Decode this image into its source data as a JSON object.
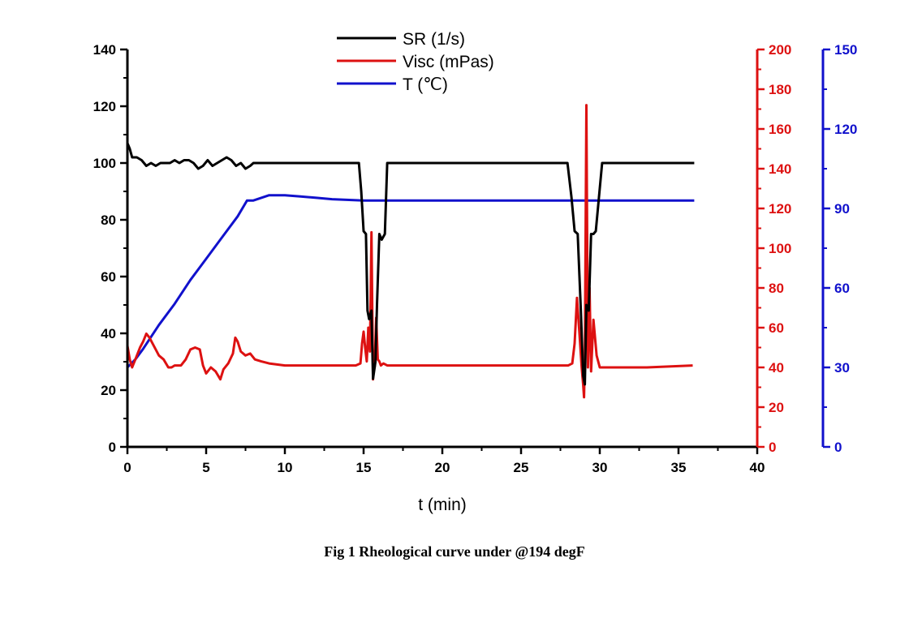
{
  "caption": "Fig 1 Rheological curve under @194 degF",
  "chart_data": {
    "type": "line",
    "xlabel": "t (min)",
    "xlim": [
      0,
      40
    ],
    "x_ticks": [
      0,
      5,
      10,
      15,
      20,
      25,
      30,
      35,
      40
    ],
    "grid": false,
    "legend_position": "top-center",
    "axes": [
      {
        "id": "left",
        "ylim": [
          0,
          140
        ],
        "ticks": [
          0,
          20,
          40,
          60,
          80,
          100,
          120,
          140
        ],
        "color": "#000000"
      },
      {
        "id": "right1",
        "ylim": [
          0,
          200
        ],
        "ticks": [
          0,
          20,
          40,
          60,
          80,
          100,
          120,
          140,
          160,
          180,
          200
        ],
        "color": "#dd1111"
      },
      {
        "id": "right2",
        "ylim": [
          0,
          150
        ],
        "ticks": [
          0,
          30,
          60,
          90,
          120,
          150
        ],
        "color": "#1111cc"
      }
    ],
    "series": [
      {
        "name": "SR (1/s)",
        "axis": "left",
        "color": "#000000",
        "x": [
          0,
          0.15,
          0.3,
          0.6,
          0.9,
          1.2,
          1.5,
          1.8,
          2.1,
          2.4,
          2.7,
          3.0,
          3.3,
          3.6,
          3.9,
          4.2,
          4.5,
          4.8,
          5.1,
          5.4,
          5.7,
          6.0,
          6.3,
          6.6,
          6.9,
          7.2,
          7.5,
          7.8,
          8.0,
          9,
          11,
          13,
          14.7,
          14.85,
          15.0,
          15.15,
          15.25,
          15.35,
          15.5,
          15.6,
          15.75,
          15.85,
          16.0,
          16.15,
          16.35,
          16.5,
          17,
          20,
          25,
          27.95,
          28.2,
          28.4,
          28.6,
          28.8,
          28.95,
          29.05,
          29.15,
          29.3,
          29.45,
          29.6,
          29.75,
          29.95,
          30.15,
          30.35,
          31,
          33,
          36
        ],
        "y": [
          107,
          105,
          102,
          102,
          101,
          99,
          100,
          99,
          100,
          100,
          100,
          101,
          100,
          101,
          101,
          100,
          98,
          99,
          101,
          99,
          100,
          101,
          102,
          101,
          99,
          100,
          98,
          99,
          100,
          100,
          100,
          100,
          100,
          90,
          76,
          75,
          48,
          45,
          48,
          24,
          30,
          50,
          75,
          73,
          75,
          100,
          100,
          100,
          100,
          100,
          88,
          76,
          75,
          48,
          25,
          22,
          50,
          48,
          75,
          75,
          76,
          88,
          100,
          100,
          100,
          100,
          100
        ]
      },
      {
        "name": "Visc (mPas)",
        "axis": "right1",
        "color": "#dd1111",
        "x": [
          0,
          0.15,
          0.3,
          0.55,
          0.8,
          1.0,
          1.2,
          1.4,
          1.6,
          1.8,
          2.0,
          2.3,
          2.6,
          2.8,
          3.0,
          3.4,
          3.7,
          4.0,
          4.3,
          4.6,
          4.8,
          5.0,
          5.3,
          5.6,
          5.9,
          6.1,
          6.4,
          6.7,
          6.85,
          7.0,
          7.2,
          7.5,
          7.8,
          8.1,
          8.5,
          9.0,
          10,
          12,
          14.5,
          14.8,
          14.9,
          15.0,
          15.1,
          15.2,
          15.3,
          15.4,
          15.5,
          15.6,
          15.65,
          15.7,
          15.8,
          15.9,
          16.0,
          16.1,
          16.25,
          16.5,
          17,
          20,
          25,
          28.0,
          28.25,
          28.4,
          28.55,
          28.7,
          28.85,
          28.95,
          29.0,
          29.05,
          29.15,
          29.25,
          29.35,
          29.45,
          29.6,
          29.8,
          30.0,
          30.3,
          31,
          33,
          35.9
        ],
        "y": [
          51,
          44,
          40,
          45,
          50,
          53,
          57,
          55,
          52,
          49,
          46,
          44,
          40,
          40,
          41,
          41,
          44,
          49,
          50,
          49,
          41,
          37,
          40,
          38,
          34,
          39,
          42,
          47,
          55,
          53,
          48,
          46,
          47,
          44,
          43,
          42,
          41,
          41,
          41,
          42,
          52,
          58,
          50,
          43,
          60,
          48,
          108,
          34,
          43,
          40,
          65,
          44,
          43,
          41,
          42,
          41,
          41,
          41,
          41,
          41,
          42,
          52,
          75,
          58,
          40,
          31,
          25,
          44,
          172,
          40,
          80,
          38,
          64,
          46,
          40,
          40,
          40,
          40,
          41
        ]
      },
      {
        "name": "T (℃)",
        "axis": "right2",
        "color": "#1111cc",
        "x": [
          0,
          0.5,
          1,
          2,
          3,
          4,
          5,
          6,
          7,
          7.6,
          8.0,
          8.5,
          9,
          9.5,
          10,
          11,
          12,
          13,
          15,
          20,
          25,
          30,
          36
        ],
        "y": [
          30,
          33,
          37,
          46,
          54,
          63,
          71,
          79,
          87,
          93,
          93,
          94,
          95,
          95,
          95,
          94.5,
          94,
          93.5,
          93,
          93,
          93,
          93,
          93
        ]
      }
    ]
  }
}
